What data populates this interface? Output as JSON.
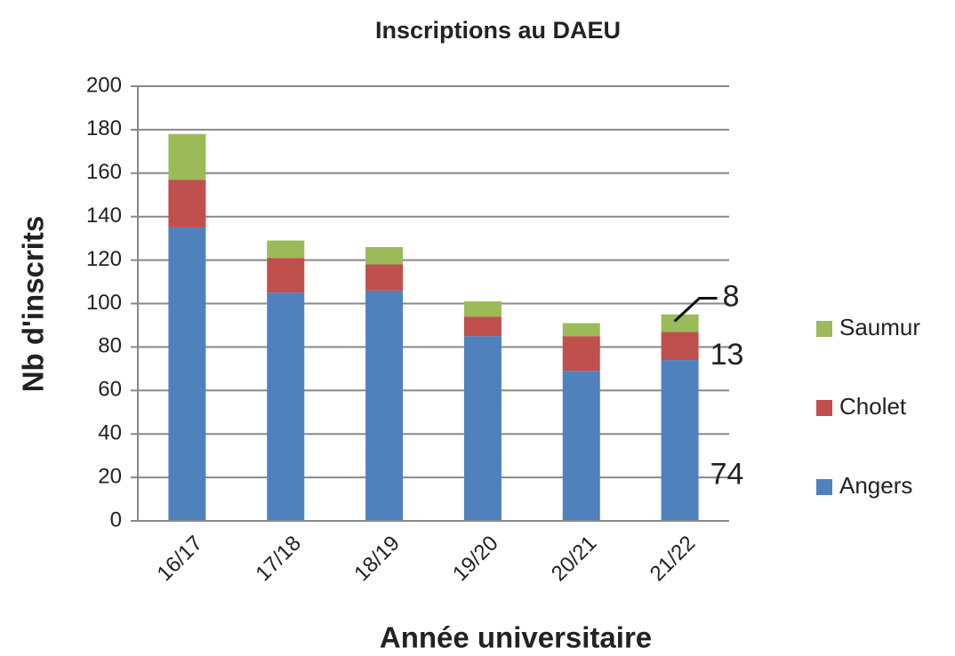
{
  "chart_data": {
    "type": "stacked_bar",
    "title": "Inscriptions au DAEU",
    "xlabel": "Année universitaire",
    "ylabel": "Nb d'inscrits",
    "categories": [
      "16/17",
      "17/18",
      "18/19",
      "19/20",
      "20/21",
      "21/22"
    ],
    "series": [
      {
        "name": "Angers",
        "color": "#4f81bd",
        "values": [
          135,
          105,
          106,
          85,
          69,
          74
        ]
      },
      {
        "name": "Cholet",
        "color": "#c0504d",
        "values": [
          22,
          16,
          12,
          9,
          16,
          13
        ]
      },
      {
        "name": "Saumur",
        "color": "#9bbb59",
        "values": [
          21,
          8,
          8,
          7,
          6,
          8
        ]
      }
    ],
    "ylim": [
      0,
      200
    ],
    "yticks": [
      0,
      20,
      40,
      60,
      80,
      100,
      120,
      140,
      160,
      180,
      200
    ],
    "grid": true,
    "legend": "right"
  }
}
